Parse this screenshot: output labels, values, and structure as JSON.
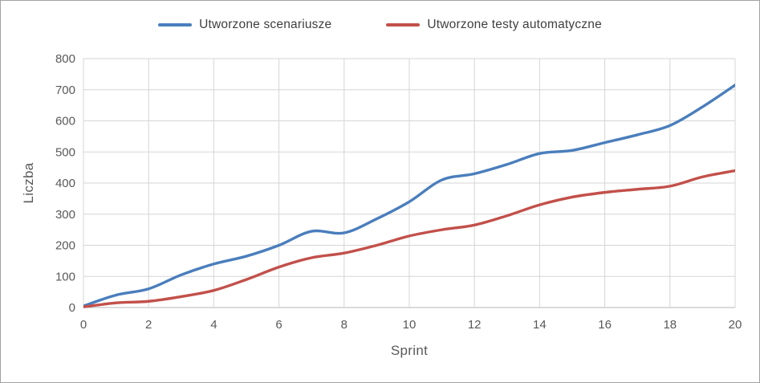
{
  "chart_data": {
    "type": "line",
    "title": "",
    "xlabel": "Sprint",
    "ylabel": "Liczba",
    "xlim": [
      0,
      20
    ],
    "ylim": [
      0,
      800
    ],
    "xticks": [
      0,
      2,
      4,
      6,
      8,
      10,
      12,
      14,
      16,
      18,
      20
    ],
    "yticks": [
      0,
      100,
      200,
      300,
      400,
      500,
      600,
      700,
      800
    ],
    "grid": true,
    "legend_position": "top",
    "x": [
      0,
      1,
      2,
      3,
      4,
      5,
      6,
      7,
      8,
      9,
      10,
      11,
      12,
      13,
      14,
      15,
      16,
      17,
      18,
      19,
      20
    ],
    "series": [
      {
        "name": "Utworzone scenariusze",
        "color": "#4a7ebc",
        "values": [
          5,
          40,
          60,
          105,
          140,
          165,
          200,
          245,
          240,
          285,
          340,
          410,
          430,
          460,
          495,
          505,
          530,
          555,
          585,
          645,
          715
        ]
      },
      {
        "name": "Utworzone testy automatyczne",
        "color": "#c2504a",
        "values": [
          2,
          15,
          20,
          35,
          55,
          90,
          130,
          160,
          175,
          200,
          230,
          250,
          265,
          295,
          330,
          355,
          370,
          380,
          390,
          420,
          440
        ]
      }
    ]
  },
  "style": {
    "gridline_color": "#d6d6d6",
    "baseline_color": "#b7b7b7",
    "tick_color": "#595959",
    "legend_text_color": "#3f3f3f"
  }
}
